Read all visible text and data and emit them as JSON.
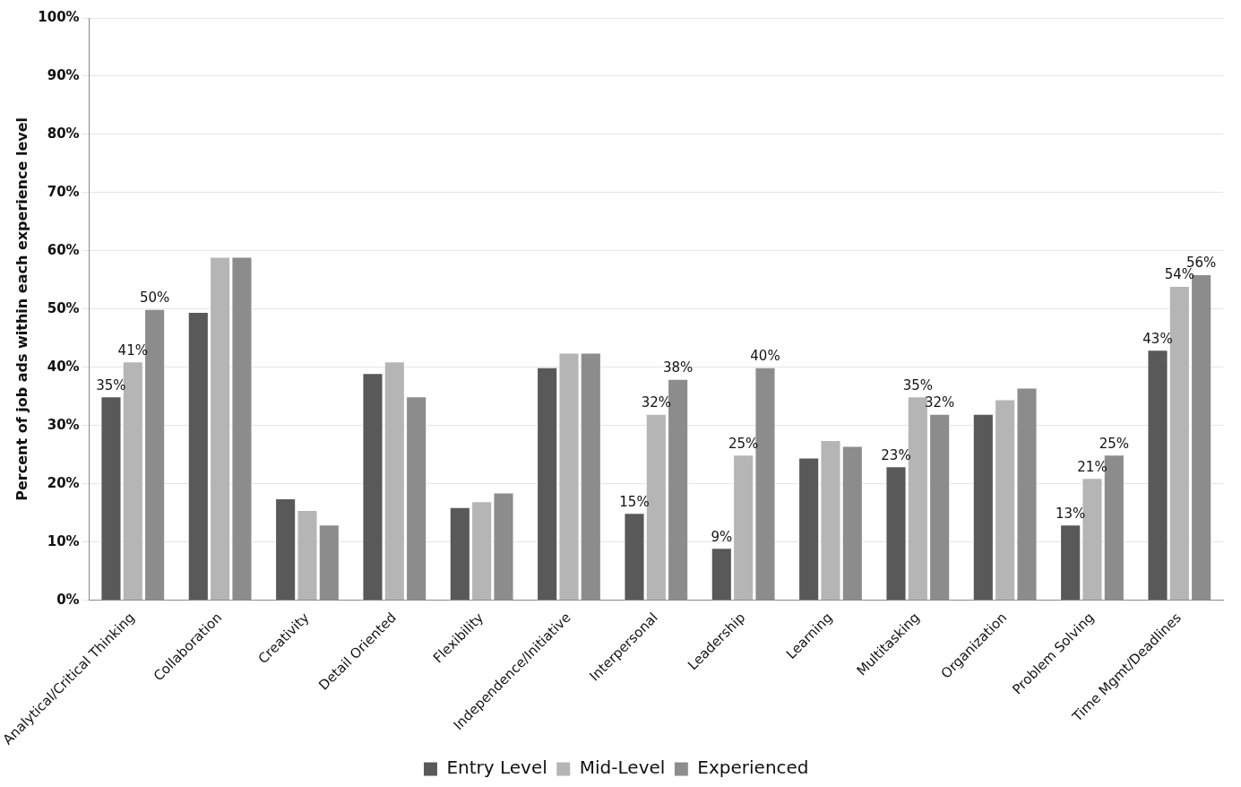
{
  "chart_data": {
    "type": "bar",
    "ylabel": "Percent of job ads within each experience level",
    "categories": [
      "Analytical/Critical Thinking",
      "Collaboration",
      "Creativity",
      "Detail Oriented",
      "Flexibility",
      "Independence/Initiative",
      "Interpersonal",
      "Leadership",
      "Learning",
      "Multitasking",
      "Organization",
      "Problem Solving",
      "Time Mgmt/Deadlines"
    ],
    "series": [
      {
        "name": "Entry Level",
        "color": "#595959",
        "values": [
          35,
          49.5,
          17.5,
          39,
          16,
          40,
          15,
          9,
          24.5,
          23,
          32,
          13,
          43
        ],
        "value_labels": [
          "35%",
          null,
          null,
          null,
          null,
          null,
          "15%",
          "9%",
          null,
          "23%",
          null,
          "13%",
          "43%"
        ]
      },
      {
        "name": "Mid-Level",
        "color": "#b5b5b5",
        "values": [
          41,
          59,
          15.5,
          41,
          17,
          42.5,
          32,
          25,
          27.5,
          35,
          34.5,
          21,
          54
        ],
        "value_labels": [
          "41%",
          null,
          null,
          null,
          null,
          null,
          "32%",
          "25%",
          null,
          "35%",
          null,
          "21%",
          "54%"
        ]
      },
      {
        "name": "Experienced",
        "color": "#8c8c8c",
        "values": [
          50,
          59,
          13,
          35,
          18.5,
          42.5,
          38,
          40,
          26.5,
          32,
          36.5,
          25,
          56
        ],
        "value_labels": [
          "50%",
          null,
          null,
          null,
          null,
          null,
          "38%",
          "40%",
          null,
          "32%",
          null,
          "25%",
          "56%"
        ]
      }
    ],
    "ylim": [
      0,
      100
    ],
    "yticks": [
      {
        "value": 0,
        "label": "0%"
      },
      {
        "value": 10,
        "label": "10%"
      },
      {
        "value": 20,
        "label": "20%"
      },
      {
        "value": 30,
        "label": "30%"
      },
      {
        "value": 40,
        "label": "40%"
      },
      {
        "value": 50,
        "label": "50%"
      },
      {
        "value": 60,
        "label": "60%"
      },
      {
        "value": 70,
        "label": "70%"
      },
      {
        "value": 80,
        "label": "80%"
      },
      {
        "value": 90,
        "label": "90%"
      },
      {
        "value": 100,
        "label": "100%"
      }
    ],
    "grid": "y",
    "legend": "bottom"
  }
}
